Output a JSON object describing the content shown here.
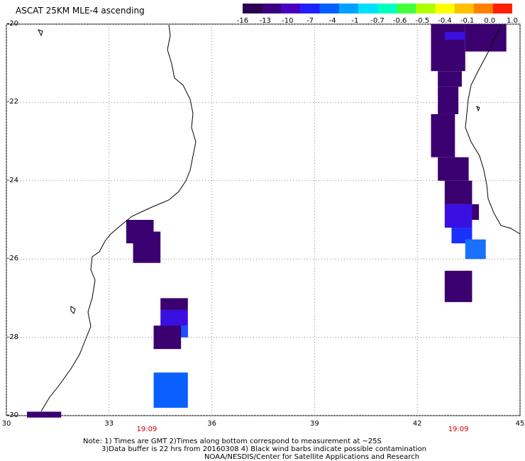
{
  "title": "ASCAT 25KM MLE-4 ascending",
  "colorbar": {
    "colors": [
      "#2a0050",
      "#3a0080",
      "#4a00c0",
      "#2020ff",
      "#0060ff",
      "#00a0ff",
      "#00e0ff",
      "#00ffc0",
      "#40ff40",
      "#b0ff00",
      "#ffff00",
      "#ffc000",
      "#ff8000",
      "#ff2000"
    ],
    "labels": [
      "-16",
      "-13",
      "-10",
      "-7",
      "-4",
      "-1",
      "-0.7",
      "-0.6",
      "-0.5",
      "-0.4",
      "-0.1",
      "0.0",
      "1.0"
    ]
  },
  "axes": {
    "lat_labels": [
      "-20",
      "-22",
      "-24",
      "-26",
      "-28",
      "-30"
    ],
    "lon_labels": [
      "30",
      "33",
      "36",
      "39",
      "42",
      "45"
    ],
    "lat_range": [
      -20,
      -30
    ],
    "lon_range": [
      30,
      45
    ]
  },
  "pass_times": [
    {
      "text": "19:09",
      "lon": 34.1
    },
    {
      "text": "19:09",
      "lon": 43.2
    }
  ],
  "data_cells": [
    {
      "lon0": 33.5,
      "lon1": 34.3,
      "lat0": -25.0,
      "lat1": -25.6,
      "color": "#3b0070"
    },
    {
      "lon0": 33.7,
      "lon1": 34.5,
      "lat0": -25.3,
      "lat1": -26.1,
      "color": "#3b0070"
    },
    {
      "lon0": 34.5,
      "lon1": 35.3,
      "lat0": -27.0,
      "lat1": -27.3,
      "color": "#3b0070"
    },
    {
      "lon0": 34.5,
      "lon1": 35.3,
      "lat0": -27.3,
      "lat1": -28.0,
      "color": "#3a10e0"
    },
    {
      "lon0": 35.1,
      "lon1": 35.3,
      "lat0": -27.7,
      "lat1": -28.0,
      "color": "#1a50ff"
    },
    {
      "lon0": 34.3,
      "lon1": 35.1,
      "lat0": -27.7,
      "lat1": -28.3,
      "color": "#3b0070"
    },
    {
      "lon0": 34.3,
      "lon1": 35.3,
      "lat0": -28.9,
      "lat1": -29.8,
      "color": "#0a60ff"
    },
    {
      "lon0": 30.6,
      "lon1": 31.6,
      "lat0": -29.9,
      "lat1": -30.05,
      "color": "#3b0070"
    },
    {
      "lon0": 42.4,
      "lon1": 43.4,
      "lat0": -20.0,
      "lat1": -21.2,
      "color": "#3b0070"
    },
    {
      "lon0": 42.8,
      "lon1": 43.5,
      "lat0": -20.2,
      "lat1": -20.4,
      "color": "#3a10e0"
    },
    {
      "lon0": 43.4,
      "lon1": 44.6,
      "lat0": -20.0,
      "lat1": -20.7,
      "color": "#3b0070"
    },
    {
      "lon0": 42.6,
      "lon1": 43.3,
      "lat0": -21.2,
      "lat1": -21.6,
      "color": "#3b0070"
    },
    {
      "lon0": 42.6,
      "lon1": 43.2,
      "lat0": -21.6,
      "lat1": -22.3,
      "color": "#3b0070"
    },
    {
      "lon0": 42.4,
      "lon1": 43.1,
      "lat0": -22.3,
      "lat1": -23.4,
      "color": "#3b0070"
    },
    {
      "lon0": 42.6,
      "lon1": 43.5,
      "lat0": -23.4,
      "lat1": -24.0,
      "color": "#3b0070"
    },
    {
      "lon0": 42.8,
      "lon1": 43.6,
      "lat0": -24.0,
      "lat1": -24.6,
      "color": "#3b0070"
    },
    {
      "lon0": 43.4,
      "lon1": 43.8,
      "lat0": -24.6,
      "lat1": -25.0,
      "color": "#3b0070"
    },
    {
      "lon0": 42.8,
      "lon1": 43.6,
      "lat0": -24.6,
      "lat1": -25.2,
      "color": "#3a10e0"
    },
    {
      "lon0": 43.0,
      "lon1": 43.6,
      "lat0": -25.2,
      "lat1": -25.6,
      "color": "#1a30ff"
    },
    {
      "lon0": 43.4,
      "lon1": 44.0,
      "lat0": -25.5,
      "lat1": -26.0,
      "color": "#1a70ff"
    },
    {
      "lon0": 42.8,
      "lon1": 43.6,
      "lat0": -26.3,
      "lat1": -27.1,
      "color": "#3b0070"
    }
  ],
  "notes": [
    "Note: 1) Times are GMT 2)Times along bottom correspond to measurement at ~25S",
    "3)Data buffer is 22 hrs from 20160308 4) Black wind barbs indicate possible contamination",
    "NOAA/NESDIS/Center for Satellite Applications and Research"
  ]
}
